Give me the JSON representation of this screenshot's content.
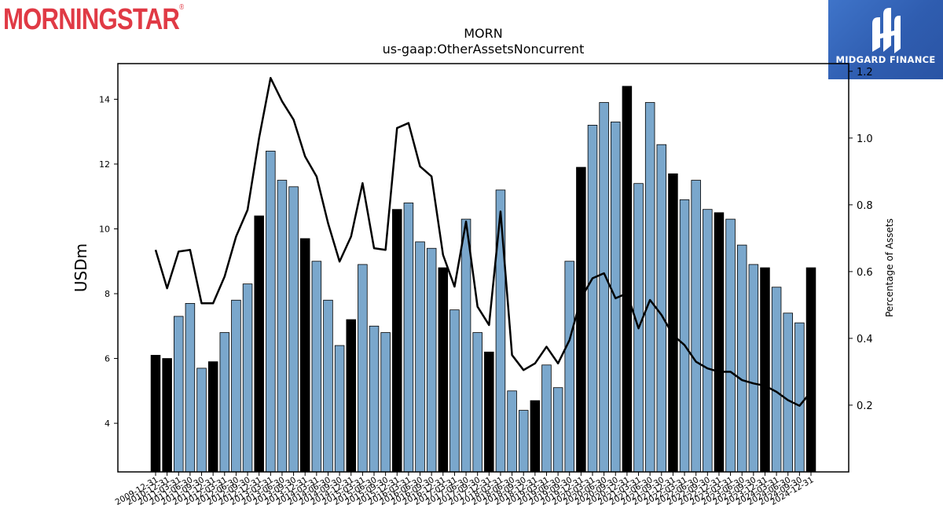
{
  "branding": {
    "left_logo_text": "MORNINGSTAR",
    "left_logo_mark": "®",
    "right_logo_text": "MIDGARD FINANCE"
  },
  "colors": {
    "bar_light": "#7aa7cc",
    "bar_dark": "#000000",
    "line": "#000000",
    "brand_red": "#e03a45",
    "brand_blue": "#2f5db0"
  },
  "chart_data": {
    "type": "bar",
    "title": "MORN",
    "subtitle": "us-gaap:OtherAssetsNoncurrent",
    "ylabel": "USDm",
    "y2label": "Percentage of Assets",
    "ylim": [
      2.5,
      15.1
    ],
    "y2lim": [
      0.0,
      1.223
    ],
    "yticks": [
      4,
      6,
      8,
      10,
      12,
      14
    ],
    "y2ticks": [
      0.2,
      0.4,
      0.6,
      0.8,
      1.0,
      1.2
    ],
    "categories": [
      "2009-12-31",
      "2010-12-31",
      "2011-03-31",
      "2011-06-30",
      "2011-09-30",
      "2011-12-31",
      "2012-03-31",
      "2012-06-30",
      "2012-09-30",
      "2012-12-31",
      "2013-03-31",
      "2013-06-30",
      "2013-09-30",
      "2013-12-31",
      "2014-03-31",
      "2014-06-30",
      "2014-09-30",
      "2014-12-31",
      "2015-03-31",
      "2015-06-30",
      "2015-09-30",
      "2015-12-31",
      "2016-03-31",
      "2016-06-30",
      "2016-09-30",
      "2016-12-31",
      "2017-03-31",
      "2017-06-30",
      "2017-09-30",
      "2017-12-31",
      "2018-03-31",
      "2018-06-30",
      "2018-09-30",
      "2018-12-31",
      "2019-03-31",
      "2019-06-30",
      "2019-09-30",
      "2019-12-31",
      "2020-03-31",
      "2020-06-30",
      "2020-09-30",
      "2020-12-31",
      "2021-03-31",
      "2021-06-30",
      "2021-09-30",
      "2021-12-31",
      "2022-03-31",
      "2022-06-30",
      "2022-09-30",
      "2022-12-31",
      "2023-03-31",
      "2023-06-30",
      "2023-09-30",
      "2023-12-31",
      "2024-03-31",
      "2024-06-30",
      "2024-09-30",
      "2024-12-31"
    ],
    "series": [
      {
        "kind": "bar",
        "values": [
          6.1,
          6.0,
          7.3,
          7.7,
          5.7,
          5.9,
          6.8,
          7.8,
          8.3,
          10.4,
          12.4,
          11.5,
          11.3,
          9.7,
          9.0,
          7.8,
          6.4,
          7.2,
          8.9,
          7.0,
          6.8,
          10.6,
          10.8,
          9.6,
          9.4,
          8.8,
          7.5,
          10.3,
          6.8,
          6.2,
          11.2,
          5.0,
          4.4,
          4.7,
          5.8,
          5.1,
          9.0,
          11.9,
          13.2,
          13.9,
          13.3,
          14.4,
          11.4,
          13.9,
          12.6,
          11.7,
          10.9,
          11.5,
          10.6,
          10.5,
          10.3,
          9.5,
          8.9,
          8.8,
          8.2,
          7.4,
          7.1,
          8.8
        ],
        "highlight": [
          true,
          true,
          false,
          false,
          false,
          true,
          false,
          false,
          false,
          true,
          false,
          false,
          false,
          true,
          false,
          false,
          false,
          true,
          false,
          false,
          false,
          true,
          false,
          false,
          false,
          true,
          false,
          false,
          false,
          true,
          false,
          false,
          false,
          true,
          false,
          false,
          false,
          true,
          false,
          false,
          false,
          true,
          false,
          false,
          false,
          true,
          false,
          false,
          false,
          true,
          false,
          false,
          false,
          true,
          false,
          false,
          false,
          true
        ]
      },
      {
        "kind": "line",
        "axis": "right",
        "values": [
          0.665,
          0.55,
          0.66,
          0.665,
          0.505,
          0.505,
          0.585,
          0.705,
          0.785,
          1.0,
          1.18,
          1.11,
          1.055,
          0.945,
          0.885,
          0.745,
          0.63,
          0.705,
          0.865,
          0.67,
          0.665,
          1.03,
          1.045,
          0.915,
          0.885,
          0.65,
          0.555,
          0.75,
          0.495,
          0.44,
          0.78,
          0.35,
          0.305,
          0.325,
          0.375,
          0.325,
          0.395,
          0.52,
          0.58,
          0.595,
          0.52,
          0.535,
          0.43,
          0.515,
          0.47,
          0.41,
          0.38,
          0.33,
          0.31,
          0.3,
          0.3,
          0.275,
          0.265,
          0.258,
          0.24,
          0.215,
          0.198,
          0.24
        ]
      }
    ],
    "legend": "none",
    "grid": false
  }
}
